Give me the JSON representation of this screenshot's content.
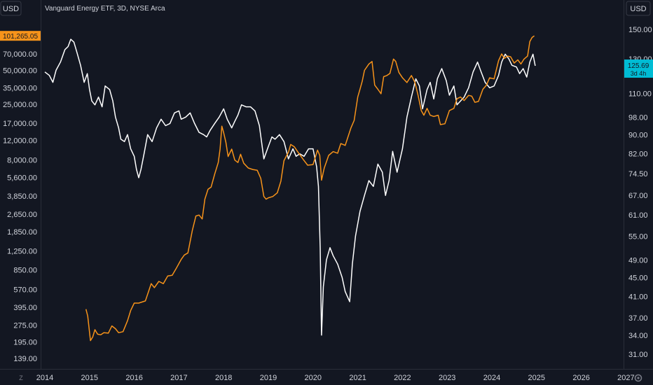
{
  "header": {
    "left_currency": "USD",
    "right_currency": "USD",
    "title": "Vanguard Energy ETF, 3D, NYSE Arca"
  },
  "footer": {
    "left_icon": "Z",
    "right_icon": "gear-icon"
  },
  "colors": {
    "background": "#131722",
    "price_line": "#ffffff",
    "overlay_line": "#f7931a",
    "price_badge": "#00bcd4",
    "overlay_badge": "#f7931a",
    "text": "#d1d4dc",
    "axis_border": "#2a2e39"
  },
  "chart_data": {
    "type": "line",
    "x_ticks": [
      "2014",
      "2015",
      "2016",
      "2017",
      "2018",
      "2019",
      "2020",
      "2021",
      "2022",
      "2023",
      "2024",
      "2025",
      "2026",
      "2027"
    ],
    "left_axis": {
      "scale": "log",
      "currency": "USD",
      "ticks": [
        "139.00",
        "195.00",
        "275.00",
        "395.00",
        "570.00",
        "850.00",
        "1,250.00",
        "1,850.00",
        "2,650.00",
        "3,850.00",
        "5,600.00",
        "8,000.00",
        "12,000.00",
        "17,000.00",
        "25,000.00",
        "35,000.00",
        "50,000.00",
        "70,000.00"
      ],
      "range": [
        110,
        120000
      ]
    },
    "right_axis": {
      "scale": "log",
      "currency": "USD",
      "ticks": [
        "31.00",
        "34.00",
        "37.00",
        "41.00",
        "45.00",
        "49.00",
        "55.00",
        "61.00",
        "67.00",
        "74.50",
        "82.00",
        "90.00",
        "98.00",
        "110.00",
        "130.00",
        "150.00"
      ],
      "range": [
        29,
        160
      ]
    },
    "series": [
      {
        "axis": "right",
        "color": "#ffffff",
        "points": [
          [
            2014.0,
            122
          ],
          [
            2014.1,
            120
          ],
          [
            2014.18,
            116
          ],
          [
            2014.25,
            123
          ],
          [
            2014.35,
            128
          ],
          [
            2014.45,
            136
          ],
          [
            2014.52,
            138
          ],
          [
            2014.58,
            143
          ],
          [
            2014.65,
            141
          ],
          [
            2014.72,
            134
          ],
          [
            2014.8,
            126
          ],
          [
            2014.88,
            116
          ],
          [
            2014.95,
            121
          ],
          [
            2015.0,
            112
          ],
          [
            2015.05,
            106
          ],
          [
            2015.12,
            104
          ],
          [
            2015.2,
            108
          ],
          [
            2015.28,
            103
          ],
          [
            2015.35,
            114
          ],
          [
            2015.45,
            112
          ],
          [
            2015.52,
            106
          ],
          [
            2015.58,
            98
          ],
          [
            2015.65,
            93
          ],
          [
            2015.7,
            88
          ],
          [
            2015.78,
            87
          ],
          [
            2015.85,
            90
          ],
          [
            2015.92,
            84
          ],
          [
            2016.0,
            81
          ],
          [
            2016.05,
            76
          ],
          [
            2016.1,
            73
          ],
          [
            2016.15,
            76
          ],
          [
            2016.22,
            82
          ],
          [
            2016.3,
            90
          ],
          [
            2016.4,
            87
          ],
          [
            2016.5,
            93
          ],
          [
            2016.6,
            97
          ],
          [
            2016.7,
            94
          ],
          [
            2016.8,
            95
          ],
          [
            2016.9,
            100
          ],
          [
            2017.0,
            101
          ],
          [
            2017.05,
            97
          ],
          [
            2017.15,
            98
          ],
          [
            2017.25,
            100
          ],
          [
            2017.35,
            95
          ],
          [
            2017.45,
            91
          ],
          [
            2017.55,
            90
          ],
          [
            2017.62,
            89
          ],
          [
            2017.7,
            92
          ],
          [
            2017.8,
            95
          ],
          [
            2017.9,
            98
          ],
          [
            2018.0,
            102
          ],
          [
            2018.08,
            97
          ],
          [
            2018.18,
            93
          ],
          [
            2018.25,
            96
          ],
          [
            2018.32,
            99
          ],
          [
            2018.4,
            104
          ],
          [
            2018.5,
            103
          ],
          [
            2018.6,
            103
          ],
          [
            2018.7,
            101
          ],
          [
            2018.8,
            94
          ],
          [
            2018.9,
            80
          ],
          [
            2019.0,
            85
          ],
          [
            2019.08,
            89
          ],
          [
            2019.15,
            88
          ],
          [
            2019.25,
            90
          ],
          [
            2019.35,
            87
          ],
          [
            2019.45,
            80
          ],
          [
            2019.55,
            84
          ],
          [
            2019.62,
            81
          ],
          [
            2019.7,
            82
          ],
          [
            2019.8,
            81
          ],
          [
            2019.9,
            84
          ],
          [
            2020.0,
            84
          ],
          [
            2020.08,
            77
          ],
          [
            2020.12,
            70
          ],
          [
            2020.16,
            52
          ],
          [
            2020.19,
            34
          ],
          [
            2020.23,
            43
          ],
          [
            2020.3,
            49
          ],
          [
            2020.38,
            52
          ],
          [
            2020.45,
            50
          ],
          [
            2020.55,
            48
          ],
          [
            2020.65,
            45
          ],
          [
            2020.72,
            42
          ],
          [
            2020.82,
            40
          ],
          [
            2020.88,
            48
          ],
          [
            2020.95,
            55
          ],
          [
            2021.05,
            62
          ],
          [
            2021.15,
            67
          ],
          [
            2021.25,
            72
          ],
          [
            2021.35,
            70
          ],
          [
            2021.45,
            78
          ],
          [
            2021.55,
            75
          ],
          [
            2021.62,
            67
          ],
          [
            2021.7,
            72
          ],
          [
            2021.78,
            83
          ],
          [
            2021.88,
            75
          ],
          [
            2022.0,
            84
          ],
          [
            2022.1,
            98
          ],
          [
            2022.2,
            108
          ],
          [
            2022.3,
            118
          ],
          [
            2022.38,
            114
          ],
          [
            2022.45,
            102
          ],
          [
            2022.55,
            112
          ],
          [
            2022.62,
            116
          ],
          [
            2022.7,
            107
          ],
          [
            2022.78,
            118
          ],
          [
            2022.88,
            124
          ],
          [
            2022.98,
            117
          ],
          [
            2023.05,
            109
          ],
          [
            2023.15,
            114
          ],
          [
            2023.22,
            104
          ],
          [
            2023.3,
            106
          ],
          [
            2023.38,
            108
          ],
          [
            2023.48,
            113
          ],
          [
            2023.58,
            122
          ],
          [
            2023.68,
            128
          ],
          [
            2023.76,
            122
          ],
          [
            2023.85,
            116
          ],
          [
            2023.95,
            113
          ],
          [
            2024.05,
            114
          ],
          [
            2024.15,
            120
          ],
          [
            2024.22,
            128
          ],
          [
            2024.3,
            133
          ],
          [
            2024.38,
            130
          ],
          [
            2024.45,
            126
          ],
          [
            2024.55,
            125
          ],
          [
            2024.62,
            121
          ],
          [
            2024.7,
            124
          ],
          [
            2024.78,
            119
          ],
          [
            2024.85,
            128
          ],
          [
            2024.92,
            133
          ],
          [
            2024.97,
            125.69
          ]
        ]
      },
      {
        "axis": "left",
        "color": "#f7931a",
        "points": [
          [
            2014.92,
            380
          ],
          [
            2014.96,
            330
          ],
          [
            2015.02,
            200
          ],
          [
            2015.07,
            215
          ],
          [
            2015.12,
            250
          ],
          [
            2015.18,
            228
          ],
          [
            2015.25,
            225
          ],
          [
            2015.32,
            235
          ],
          [
            2015.42,
            233
          ],
          [
            2015.5,
            270
          ],
          [
            2015.58,
            255
          ],
          [
            2015.65,
            235
          ],
          [
            2015.75,
            240
          ],
          [
            2015.85,
            300
          ],
          [
            2015.92,
            370
          ],
          [
            2016.0,
            430
          ],
          [
            2016.1,
            430
          ],
          [
            2016.25,
            450
          ],
          [
            2016.38,
            640
          ],
          [
            2016.45,
            590
          ],
          [
            2016.55,
            670
          ],
          [
            2016.65,
            640
          ],
          [
            2016.75,
            750
          ],
          [
            2016.85,
            760
          ],
          [
            2016.95,
            890
          ],
          [
            2017.05,
            1050
          ],
          [
            2017.12,
            1150
          ],
          [
            2017.2,
            1200
          ],
          [
            2017.3,
            1900
          ],
          [
            2017.38,
            2550
          ],
          [
            2017.45,
            2600
          ],
          [
            2017.52,
            2400
          ],
          [
            2017.58,
            3600
          ],
          [
            2017.65,
            4400
          ],
          [
            2017.72,
            4600
          ],
          [
            2017.8,
            6000
          ],
          [
            2017.88,
            7600
          ],
          [
            2017.92,
            10000
          ],
          [
            2017.96,
            16000
          ],
          [
            2018.0,
            14000
          ],
          [
            2018.05,
            11500
          ],
          [
            2018.1,
            8600
          ],
          [
            2018.18,
            10000
          ],
          [
            2018.25,
            8000
          ],
          [
            2018.32,
            7600
          ],
          [
            2018.38,
            9000
          ],
          [
            2018.45,
            7500
          ],
          [
            2018.55,
            6800
          ],
          [
            2018.65,
            6600
          ],
          [
            2018.75,
            6500
          ],
          [
            2018.83,
            5500
          ],
          [
            2018.9,
            3800
          ],
          [
            2018.95,
            3600
          ],
          [
            2019.0,
            3700
          ],
          [
            2019.1,
            3800
          ],
          [
            2019.2,
            4100
          ],
          [
            2019.28,
            5200
          ],
          [
            2019.35,
            7900
          ],
          [
            2019.45,
            9400
          ],
          [
            2019.5,
            11000
          ],
          [
            2019.58,
            10500
          ],
          [
            2019.68,
            9200
          ],
          [
            2019.78,
            8100
          ],
          [
            2019.88,
            7200
          ],
          [
            2020.0,
            7300
          ],
          [
            2020.1,
            9800
          ],
          [
            2020.15,
            8800
          ],
          [
            2020.19,
            5300
          ],
          [
            2020.25,
            6800
          ],
          [
            2020.35,
            8800
          ],
          [
            2020.45,
            9500
          ],
          [
            2020.55,
            9200
          ],
          [
            2020.62,
            11200
          ],
          [
            2020.72,
            10800
          ],
          [
            2020.8,
            13500
          ],
          [
            2020.85,
            15500
          ],
          [
            2020.92,
            18000
          ],
          [
            2021.0,
            29000
          ],
          [
            2021.05,
            34000
          ],
          [
            2021.1,
            40000
          ],
          [
            2021.15,
            50000
          ],
          [
            2021.25,
            57000
          ],
          [
            2021.32,
            60000
          ],
          [
            2021.38,
            37000
          ],
          [
            2021.45,
            34000
          ],
          [
            2021.52,
            31000
          ],
          [
            2021.58,
            44000
          ],
          [
            2021.65,
            45000
          ],
          [
            2021.72,
            47000
          ],
          [
            2021.8,
            63000
          ],
          [
            2021.85,
            60000
          ],
          [
            2021.92,
            48000
          ],
          [
            2022.0,
            43000
          ],
          [
            2022.1,
            39000
          ],
          [
            2022.2,
            45000
          ],
          [
            2022.28,
            39000
          ],
          [
            2022.35,
            30000
          ],
          [
            2022.42,
            22000
          ],
          [
            2022.48,
            20000
          ],
          [
            2022.55,
            23000
          ],
          [
            2022.62,
            20000
          ],
          [
            2022.7,
            19500
          ],
          [
            2022.8,
            20000
          ],
          [
            2022.85,
            16500
          ],
          [
            2022.95,
            16800
          ],
          [
            2023.05,
            22000
          ],
          [
            2023.15,
            23000
          ],
          [
            2023.22,
            28000
          ],
          [
            2023.3,
            29000
          ],
          [
            2023.38,
            27000
          ],
          [
            2023.48,
            30000
          ],
          [
            2023.55,
            29500
          ],
          [
            2023.62,
            26000
          ],
          [
            2023.7,
            26500
          ],
          [
            2023.8,
            34000
          ],
          [
            2023.88,
            37000
          ],
          [
            2023.95,
            43000
          ],
          [
            2024.05,
            42000
          ],
          [
            2024.15,
            61000
          ],
          [
            2024.22,
            70000
          ],
          [
            2024.28,
            64000
          ],
          [
            2024.35,
            67000
          ],
          [
            2024.42,
            66000
          ],
          [
            2024.5,
            58000
          ],
          [
            2024.58,
            62000
          ],
          [
            2024.65,
            57000
          ],
          [
            2024.72,
            63000
          ],
          [
            2024.8,
            67000
          ],
          [
            2024.85,
            90000
          ],
          [
            2024.9,
            98000
          ],
          [
            2024.95,
            101265.05
          ]
        ]
      }
    ],
    "last_values": {
      "overlay": "101,265.05",
      "price": "125.69",
      "countdown": "3d 4h"
    }
  }
}
